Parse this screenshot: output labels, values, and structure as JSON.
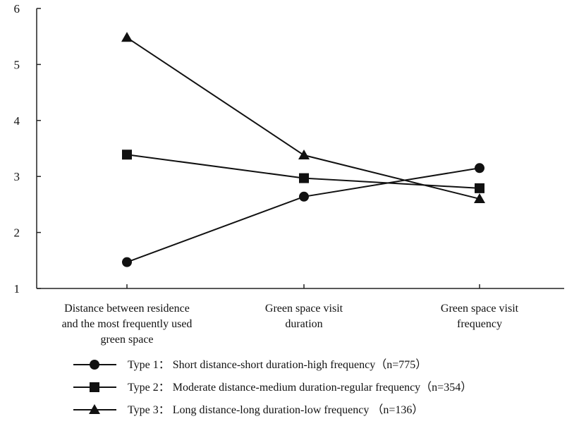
{
  "chart_data": {
    "type": "line",
    "title": "",
    "xlabel": "",
    "ylabel": "",
    "ylim": [
      1,
      6
    ],
    "yticks": [
      "1",
      "2",
      "3",
      "4",
      "5",
      "6"
    ],
    "categories": [
      [
        "Distance between residence",
        "and the most frequently used",
        "green space"
      ],
      [
        "Green space visit",
        "duration"
      ],
      [
        "Green space visit",
        "frequency"
      ]
    ],
    "series": [
      {
        "name": "Type 1： Short distance-short duration-high frequency（n=775）",
        "marker": "circle",
        "values": [
          1.47,
          2.64,
          3.15
        ]
      },
      {
        "name": "Type 2： Moderate distance-medium duration-regular frequency（n=354）",
        "marker": "square",
        "values": [
          3.39,
          2.97,
          2.79
        ]
      },
      {
        "name": "Type 3： Long distance-long duration-low frequency （n=136）",
        "marker": "triangle",
        "values": [
          5.48,
          3.38,
          2.6
        ]
      }
    ],
    "legend_position": "bottom",
    "grid": false
  }
}
